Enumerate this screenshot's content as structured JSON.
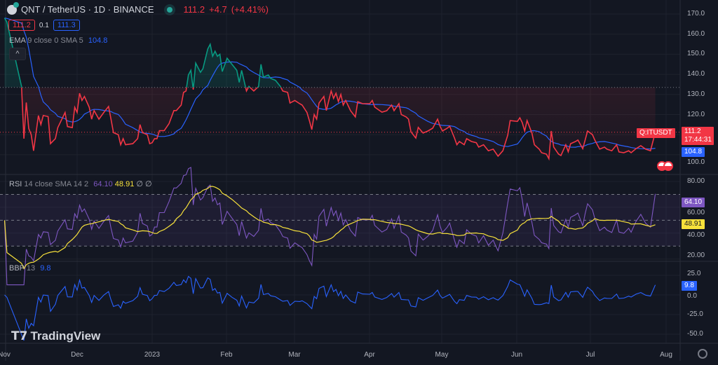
{
  "header": {
    "symbol_title": "QNT / TetherUS · 1D · BINANCE",
    "last_price": "111.2",
    "change": "+4.7",
    "change_pct": "(+4.41%)",
    "bid": "111.2",
    "spread": "0.1",
    "ask": "111.3"
  },
  "legends": {
    "ema_name": "EMA",
    "ema_params": "9 close 0 SMA 5",
    "ema_value": "104.8",
    "rsi_name": "RSI",
    "rsi_params": "14 close SMA 14 2",
    "rsi_value": "64.10",
    "rsi_sma_value": "48.91",
    "rsi_extra": "∅ ∅",
    "bbp_name": "BBP",
    "bbp_params": "13",
    "bbp_value": "9.8",
    "collapse_glyph": "^"
  },
  "price_axis": [
    "170.0",
    "160.0",
    "150.0",
    "140.0",
    "130.0",
    "120.0",
    "100.0"
  ],
  "rsi_axis": [
    "80.00",
    "60.00",
    "40.00",
    "20.00"
  ],
  "bbp_axis": [
    "25.0",
    "0.0",
    "-25.0",
    "-50.0"
  ],
  "time_axis": [
    "Nov",
    "Dec",
    "2023",
    "Feb",
    "Mar",
    "Apr",
    "May",
    "Jun",
    "Jul",
    "Aug"
  ],
  "tags": {
    "symbol_short": "Q:ITUSDT",
    "price": "111.2",
    "countdown": "17:44:31",
    "ema": "104.8",
    "rsi": "64.10",
    "rsi_sma": "48.91",
    "bbp": "9.8"
  },
  "branding": {
    "logo_text": "TradingView"
  },
  "colors": {
    "background": "#131722",
    "up": "#089981",
    "down": "#f23645",
    "ema": "#2962ff",
    "rsi": "#7e57c2",
    "rsi_sma": "#f7e13b",
    "bbp": "#2962ff"
  },
  "chart_data": {
    "type": "line",
    "style": "baseline",
    "baseline_value": 133.5,
    "price_range": [
      95,
      172
    ],
    "rsi_range": [
      15,
      85
    ],
    "rsi_bands": [
      70,
      50,
      30
    ],
    "bbp_range": [
      -60,
      35
    ],
    "grid": true,
    "price": [
      [
        "2022-11-01",
        168
      ],
      [
        "2022-11-02",
        166
      ],
      [
        "2022-11-08",
        134
      ],
      [
        "2022-11-09",
        108
      ],
      [
        "2022-11-10",
        126
      ],
      [
        "2022-11-11",
        113
      ],
      [
        "2022-11-12",
        110
      ],
      [
        "2022-11-13",
        102
      ],
      [
        "2022-11-15",
        119.5
      ],
      [
        "2022-11-16",
        115
      ],
      [
        "2022-11-17",
        119.5
      ],
      [
        "2022-11-19",
        119
      ],
      [
        "2022-11-20",
        105.5
      ],
      [
        "2022-11-22",
        108
      ],
      [
        "2022-11-23",
        113.5
      ],
      [
        "2022-11-26",
        121
      ],
      [
        "2022-11-27",
        114
      ],
      [
        "2022-11-29",
        113.5
      ],
      [
        "2022-11-30",
        123.6
      ],
      [
        "2022-12-01",
        121
      ],
      [
        "2022-12-02",
        130.6
      ],
      [
        "2022-12-03",
        127
      ],
      [
        "2022-12-04",
        129
      ],
      [
        "2022-12-06",
        123.6
      ],
      [
        "2022-12-07",
        117.7
      ],
      [
        "2022-12-08",
        122
      ],
      [
        "2022-12-10",
        117.7
      ],
      [
        "2022-12-12",
        121
      ],
      [
        "2022-12-14",
        124
      ],
      [
        "2022-12-15",
        117.7
      ],
      [
        "2022-12-16",
        111
      ],
      [
        "2022-12-18",
        110
      ],
      [
        "2022-12-19",
        105
      ],
      [
        "2022-12-20",
        108
      ],
      [
        "2022-12-21",
        105
      ],
      [
        "2022-12-24",
        105.5
      ],
      [
        "2022-12-26",
        108
      ],
      [
        "2022-12-27",
        115
      ],
      [
        "2022-12-28",
        111
      ],
      [
        "2022-12-30",
        110
      ],
      [
        "2022-12-31",
        105.5
      ],
      [
        "2023-01-01",
        106
      ],
      [
        "2023-01-02",
        108
      ],
      [
        "2023-01-03",
        108
      ],
      [
        "2023-01-04",
        112
      ],
      [
        "2023-01-06",
        112
      ],
      [
        "2023-01-08",
        115.5
      ],
      [
        "2023-01-10",
        122
      ],
      [
        "2023-01-11",
        122
      ],
      [
        "2023-01-13",
        124.7
      ],
      [
        "2023-01-14",
        131
      ],
      [
        "2023-01-15",
        131.7
      ],
      [
        "2023-01-16",
        139.7
      ],
      [
        "2023-01-17",
        142
      ],
      [
        "2023-01-18",
        132.4
      ],
      [
        "2023-01-19",
        145.6
      ],
      [
        "2023-01-21",
        141
      ],
      [
        "2023-01-22",
        142.8
      ],
      [
        "2023-01-24",
        152.6
      ],
      [
        "2023-01-25",
        155
      ],
      [
        "2023-01-26",
        149
      ],
      [
        "2023-01-27",
        151.5
      ],
      [
        "2023-01-28",
        149
      ],
      [
        "2023-01-29",
        150
      ],
      [
        "2023-01-30",
        141.4
      ],
      [
        "2023-02-01",
        148
      ],
      [
        "2023-02-03",
        145
      ],
      [
        "2023-02-05",
        142
      ],
      [
        "2023-02-06",
        136
      ],
      [
        "2023-02-07",
        142
      ],
      [
        "2023-02-09",
        131.7
      ],
      [
        "2023-02-10",
        134
      ],
      [
        "2023-02-12",
        131.7
      ],
      [
        "2023-02-14",
        134
      ],
      [
        "2023-02-15",
        145
      ],
      [
        "2023-02-16",
        138.6
      ],
      [
        "2023-02-18",
        139.7
      ],
      [
        "2023-02-19",
        138
      ],
      [
        "2023-02-21",
        137
      ],
      [
        "2023-02-23",
        134
      ],
      [
        "2023-02-24",
        131.7
      ],
      [
        "2023-02-26",
        131
      ],
      [
        "2023-02-27",
        125.7
      ],
      [
        "2023-03-01",
        127
      ],
      [
        "2023-03-03",
        125.4
      ],
      [
        "2023-03-04",
        124.7
      ],
      [
        "2023-03-06",
        121
      ],
      [
        "2023-03-07",
        117
      ],
      [
        "2023-03-08",
        112.5
      ],
      [
        "2023-03-09",
        120
      ],
      [
        "2023-03-10",
        117.7
      ],
      [
        "2023-03-11",
        125.7
      ],
      [
        "2023-03-13",
        129
      ],
      [
        "2023-03-14",
        122
      ],
      [
        "2023-03-16",
        131.7
      ],
      [
        "2023-03-17",
        128
      ],
      [
        "2023-03-18",
        130.6
      ],
      [
        "2023-03-19",
        126.4
      ],
      [
        "2023-03-20",
        130
      ],
      [
        "2023-03-21",
        124.7
      ],
      [
        "2023-03-22",
        127
      ],
      [
        "2023-03-24",
        121.9
      ],
      [
        "2023-03-26",
        118.8
      ],
      [
        "2023-03-27",
        126.4
      ],
      [
        "2023-03-29",
        125.4
      ],
      [
        "2023-04-01",
        125.4
      ],
      [
        "2023-04-02",
        127
      ],
      [
        "2023-04-03",
        123.7
      ],
      [
        "2023-04-06",
        121.2
      ],
      [
        "2023-04-08",
        121.9
      ],
      [
        "2023-04-10",
        124.7
      ],
      [
        "2023-04-11",
        121.9
      ],
      [
        "2023-04-13",
        125.4
      ],
      [
        "2023-04-14",
        120
      ],
      [
        "2023-04-16",
        118.8
      ],
      [
        "2023-04-17",
        117.7
      ],
      [
        "2023-04-18",
        111.4
      ],
      [
        "2023-04-20",
        108.3
      ],
      [
        "2023-04-21",
        113.6
      ],
      [
        "2023-04-23",
        110.8
      ],
      [
        "2023-04-25",
        111.8
      ],
      [
        "2023-04-27",
        113.2
      ],
      [
        "2023-04-29",
        117.7
      ],
      [
        "2023-04-30",
        114.2
      ],
      [
        "2023-05-01",
        111.8
      ],
      [
        "2023-05-03",
        113.2
      ],
      [
        "2023-05-04",
        114.2
      ],
      [
        "2023-05-06",
        108.3
      ],
      [
        "2023-05-07",
        105
      ],
      [
        "2023-05-08",
        106.6
      ],
      [
        "2023-05-10",
        105
      ],
      [
        "2023-05-11",
        108
      ],
      [
        "2023-05-13",
        106.6
      ],
      [
        "2023-05-15",
        106
      ],
      [
        "2023-05-16",
        103.8
      ],
      [
        "2023-05-18",
        105
      ],
      [
        "2023-05-20",
        102
      ],
      [
        "2023-05-22",
        102.8
      ],
      [
        "2023-05-23",
        101
      ],
      [
        "2023-05-24",
        99.3
      ],
      [
        "2023-05-26",
        102
      ],
      [
        "2023-05-28",
        109.7
      ],
      [
        "2023-05-29",
        117
      ],
      [
        "2023-06-01",
        116.6
      ],
      [
        "2023-06-02",
        118.4
      ],
      [
        "2023-06-03",
        116
      ],
      [
        "2023-06-04",
        111.8
      ],
      [
        "2023-06-05",
        117
      ],
      [
        "2023-06-07",
        110.8
      ],
      [
        "2023-06-08",
        105
      ],
      [
        "2023-06-10",
        102.8
      ],
      [
        "2023-06-11",
        101
      ],
      [
        "2023-06-13",
        100.3
      ],
      [
        "2023-06-14",
        98
      ],
      [
        "2023-06-15",
        111.8
      ],
      [
        "2023-06-16",
        103.8
      ],
      [
        "2023-06-18",
        100.3
      ],
      [
        "2023-06-19",
        99.6
      ],
      [
        "2023-06-21",
        105
      ],
      [
        "2023-06-22",
        101.5
      ],
      [
        "2023-06-23",
        105.5
      ],
      [
        "2023-06-25",
        106.6
      ],
      [
        "2023-06-26",
        107.3
      ],
      [
        "2023-06-28",
        103
      ],
      [
        "2023-06-29",
        107.3
      ],
      [
        "2023-06-30",
        111.8
      ],
      [
        "2023-07-02",
        110
      ],
      [
        "2023-07-03",
        107.3
      ],
      [
        "2023-07-05",
        102.8
      ],
      [
        "2023-07-07",
        103.8
      ],
      [
        "2023-07-08",
        102.8
      ],
      [
        "2023-07-10",
        102
      ],
      [
        "2023-07-12",
        105
      ],
      [
        "2023-07-13",
        101.4
      ],
      [
        "2023-07-15",
        101
      ],
      [
        "2023-07-17",
        102
      ],
      [
        "2023-07-18",
        101
      ],
      [
        "2023-07-20",
        103
      ],
      [
        "2023-07-22",
        104.5
      ],
      [
        "2023-07-24",
        102.8
      ],
      [
        "2023-07-26",
        102
      ],
      [
        "2023-07-28",
        111.2
      ]
    ]
  }
}
